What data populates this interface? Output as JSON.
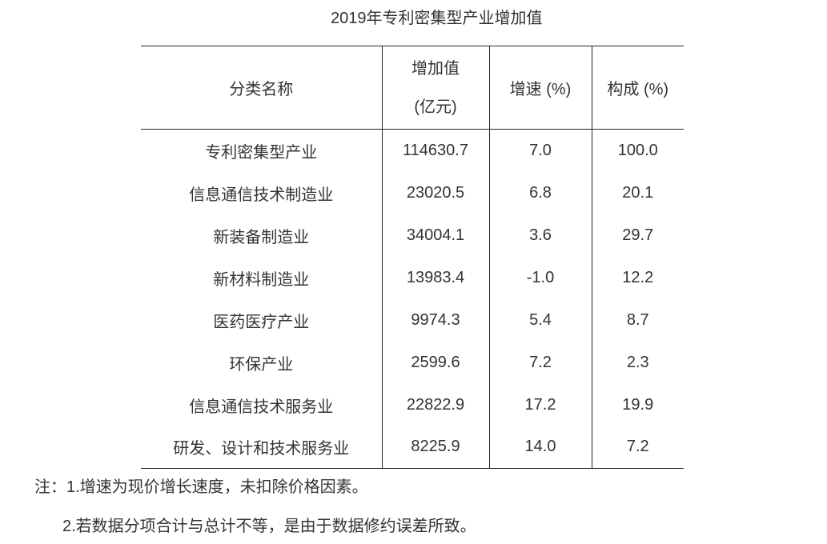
{
  "title": "2019年专利密集型产业增加值",
  "table": {
    "header": {
      "category": "分类名称",
      "value_label": "增加值",
      "value_unit": "(亿元)",
      "growth": "增速 (%)",
      "share": "构成 (%)"
    },
    "rows": [
      {
        "name": "专利密集型产业",
        "value": "114630.7",
        "growth": "7.0",
        "share": "100.0"
      },
      {
        "name": "信息通信技术制造业",
        "value": "23020.5",
        "growth": "6.8",
        "share": "20.1"
      },
      {
        "name": "新装备制造业",
        "value": "34004.1",
        "growth": "3.6",
        "share": "29.7"
      },
      {
        "name": "新材料制造业",
        "value": "13983.4",
        "growth": "-1.0",
        "share": "12.2"
      },
      {
        "name": "医药医疗产业",
        "value": "9974.3",
        "growth": "5.4",
        "share": "8.7"
      },
      {
        "name": "环保产业",
        "value": "2599.6",
        "growth": "7.2",
        "share": "2.3"
      },
      {
        "name": "信息通信技术服务业",
        "value": "22822.9",
        "growth": "17.2",
        "share": "19.9"
      },
      {
        "name": "研发、设计和技术服务业",
        "value": "8225.9",
        "growth": "14.0",
        "share": "7.2"
      }
    ]
  },
  "notes": {
    "prefix": "注：",
    "note1": "1.增速为现价增长速度，未扣除价格因素。",
    "note2": "2.若数据分项合计与总计不等，是由于数据修约误差所致。"
  },
  "colors": {
    "text": "#333333",
    "border": "#262626",
    "background": "#ffffff"
  }
}
